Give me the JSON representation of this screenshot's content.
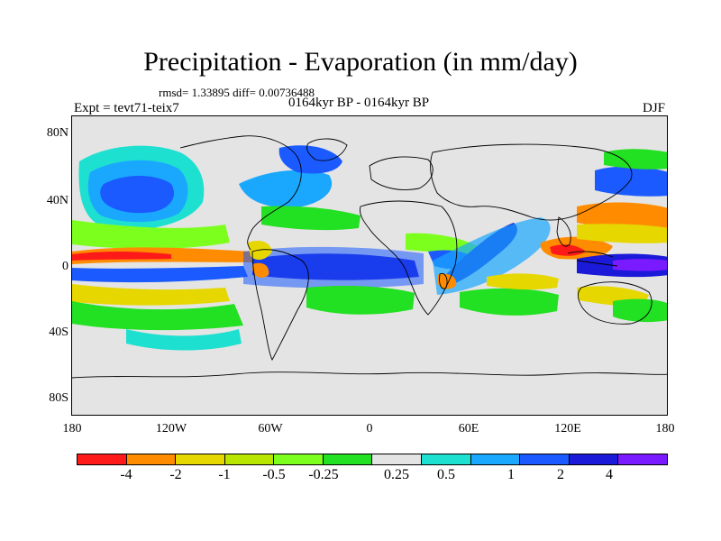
{
  "title": "Precipitation - Evaporation (in mm/day)",
  "stats": "rmsd= 1.33895 diff= 0.00736488",
  "experiment": "Expt = tevt71-teix7",
  "period": "0164kyr BP - 0164kyr BP",
  "season": "DJF",
  "y_axis": {
    "ticks": [
      "80N",
      "40N",
      "0",
      "40S",
      "80S"
    ],
    "values": [
      80,
      40,
      0,
      -40,
      -80
    ],
    "range": [
      -90,
      90
    ]
  },
  "x_axis": {
    "ticks": [
      "180",
      "120W",
      "60W",
      "0",
      "60E",
      "120E",
      "180"
    ],
    "values": [
      -180,
      -120,
      -60,
      0,
      60,
      120,
      180
    ],
    "range": [
      -180,
      180
    ]
  },
  "colorbar": {
    "colors": [
      "#ff1a1a",
      "#ff8c00",
      "#e6d700",
      "#b8e600",
      "#7dff1e",
      "#22e022",
      "#e4e4e4",
      "#1ee0d0",
      "#1aa8ff",
      "#1a5aff",
      "#1a1ad8",
      "#7a1aff"
    ],
    "labels": [
      "-4",
      "-2",
      "-1",
      "-0.5",
      "-0.25",
      "0.25",
      "0.5",
      "1",
      "2",
      "4"
    ]
  },
  "colors": {
    "land_ocean_neutral": "#e4e4e4",
    "coastline": "#000000"
  }
}
